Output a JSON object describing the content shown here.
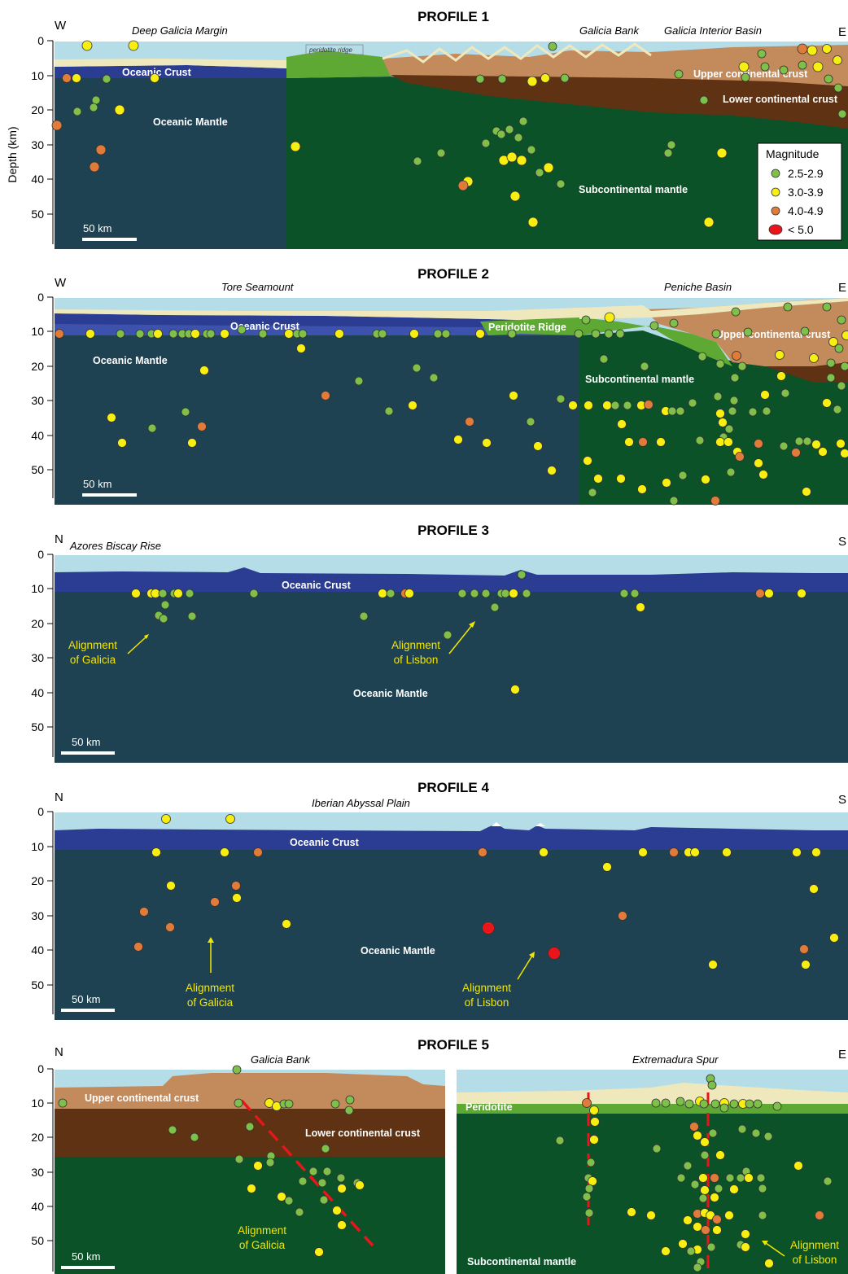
{
  "figure": {
    "ylabel": "Depth (km)",
    "depth_ticks": [
      "0",
      "10",
      "20",
      "30",
      "40",
      "50"
    ],
    "scale_bar": "50 km",
    "legend": {
      "title": "Magnitude",
      "items": [
        {
          "label": "2.5-2.9",
          "color": "#7fc04a"
        },
        {
          "label": "3.0-3.9",
          "color": "#f7ef12"
        },
        {
          "label": "4.0-4.9",
          "color": "#e07b3a"
        },
        {
          "label": "< 5.0",
          "color": "#e8161b"
        }
      ]
    }
  },
  "profiles": [
    {
      "title": "PROFILE 1",
      "left": "W",
      "right": "E",
      "regions": [
        "Deep Galicia Margin",
        "Galicia Bank",
        "Galicia Interior Basin"
      ],
      "labels": [
        "Oceanic Crust",
        "Oceanic Mantle",
        "Subcontinental mantle",
        "Upper continental crust",
        "Lower continental crust",
        "peridotite ridge"
      ],
      "annotations": []
    },
    {
      "title": "PROFILE 2",
      "left": "W",
      "right": "E",
      "regions": [
        "Tore Seamount",
        "Peniche Basin"
      ],
      "labels": [
        "Oceanic Crust",
        "Oceanic Mantle",
        "Peridotite Ridge",
        "Subcontinental mantle",
        "Upper continental crust"
      ],
      "annotations": []
    },
    {
      "title": "PROFILE 3",
      "left": "N",
      "right": "S",
      "regions": [
        "Azores Biscay Rise"
      ],
      "labels": [
        "Oceanic Crust",
        "Oceanic Mantle"
      ],
      "annotations": [
        [
          "Alignment",
          "of Galicia"
        ],
        [
          "Alignment",
          "of Lisbon"
        ]
      ]
    },
    {
      "title": "PROFILE 4",
      "left": "N",
      "right": "S",
      "regions": [
        "Iberian Abyssal Plain"
      ],
      "labels": [
        "Oceanic Crust",
        "Oceanic Mantle"
      ],
      "annotations": [
        [
          "Alignment",
          "of Galicia"
        ],
        [
          "Alignment",
          "of Lisbon"
        ]
      ]
    },
    {
      "title": "PROFILE 5",
      "left": "N",
      "right": "E",
      "regions": [
        "Galicia Bank",
        "Extremadura Spur"
      ],
      "labels": [
        "Upper continental crust",
        "Lower continental crust",
        "Peridotite",
        "Subcontinental mantle"
      ],
      "annotations": [
        [
          "Alignment",
          "of Galicia"
        ],
        [
          "Alignment",
          "of Lisbon"
        ]
      ]
    }
  ],
  "colors": {
    "water": "#b5dde8",
    "sediment": "#efe8bc",
    "oceanic_crust": "#2a3d93",
    "oceanic_mantle": "#1f4252",
    "subcontinental_mantle": "#0b5228",
    "peridotite": "#5ea834",
    "upper_continental_crust": "#c38a5c",
    "lower_continental_crust": "#5e3212",
    "alignment_text": "#f2e600",
    "fault_line": "#e8161b"
  }
}
